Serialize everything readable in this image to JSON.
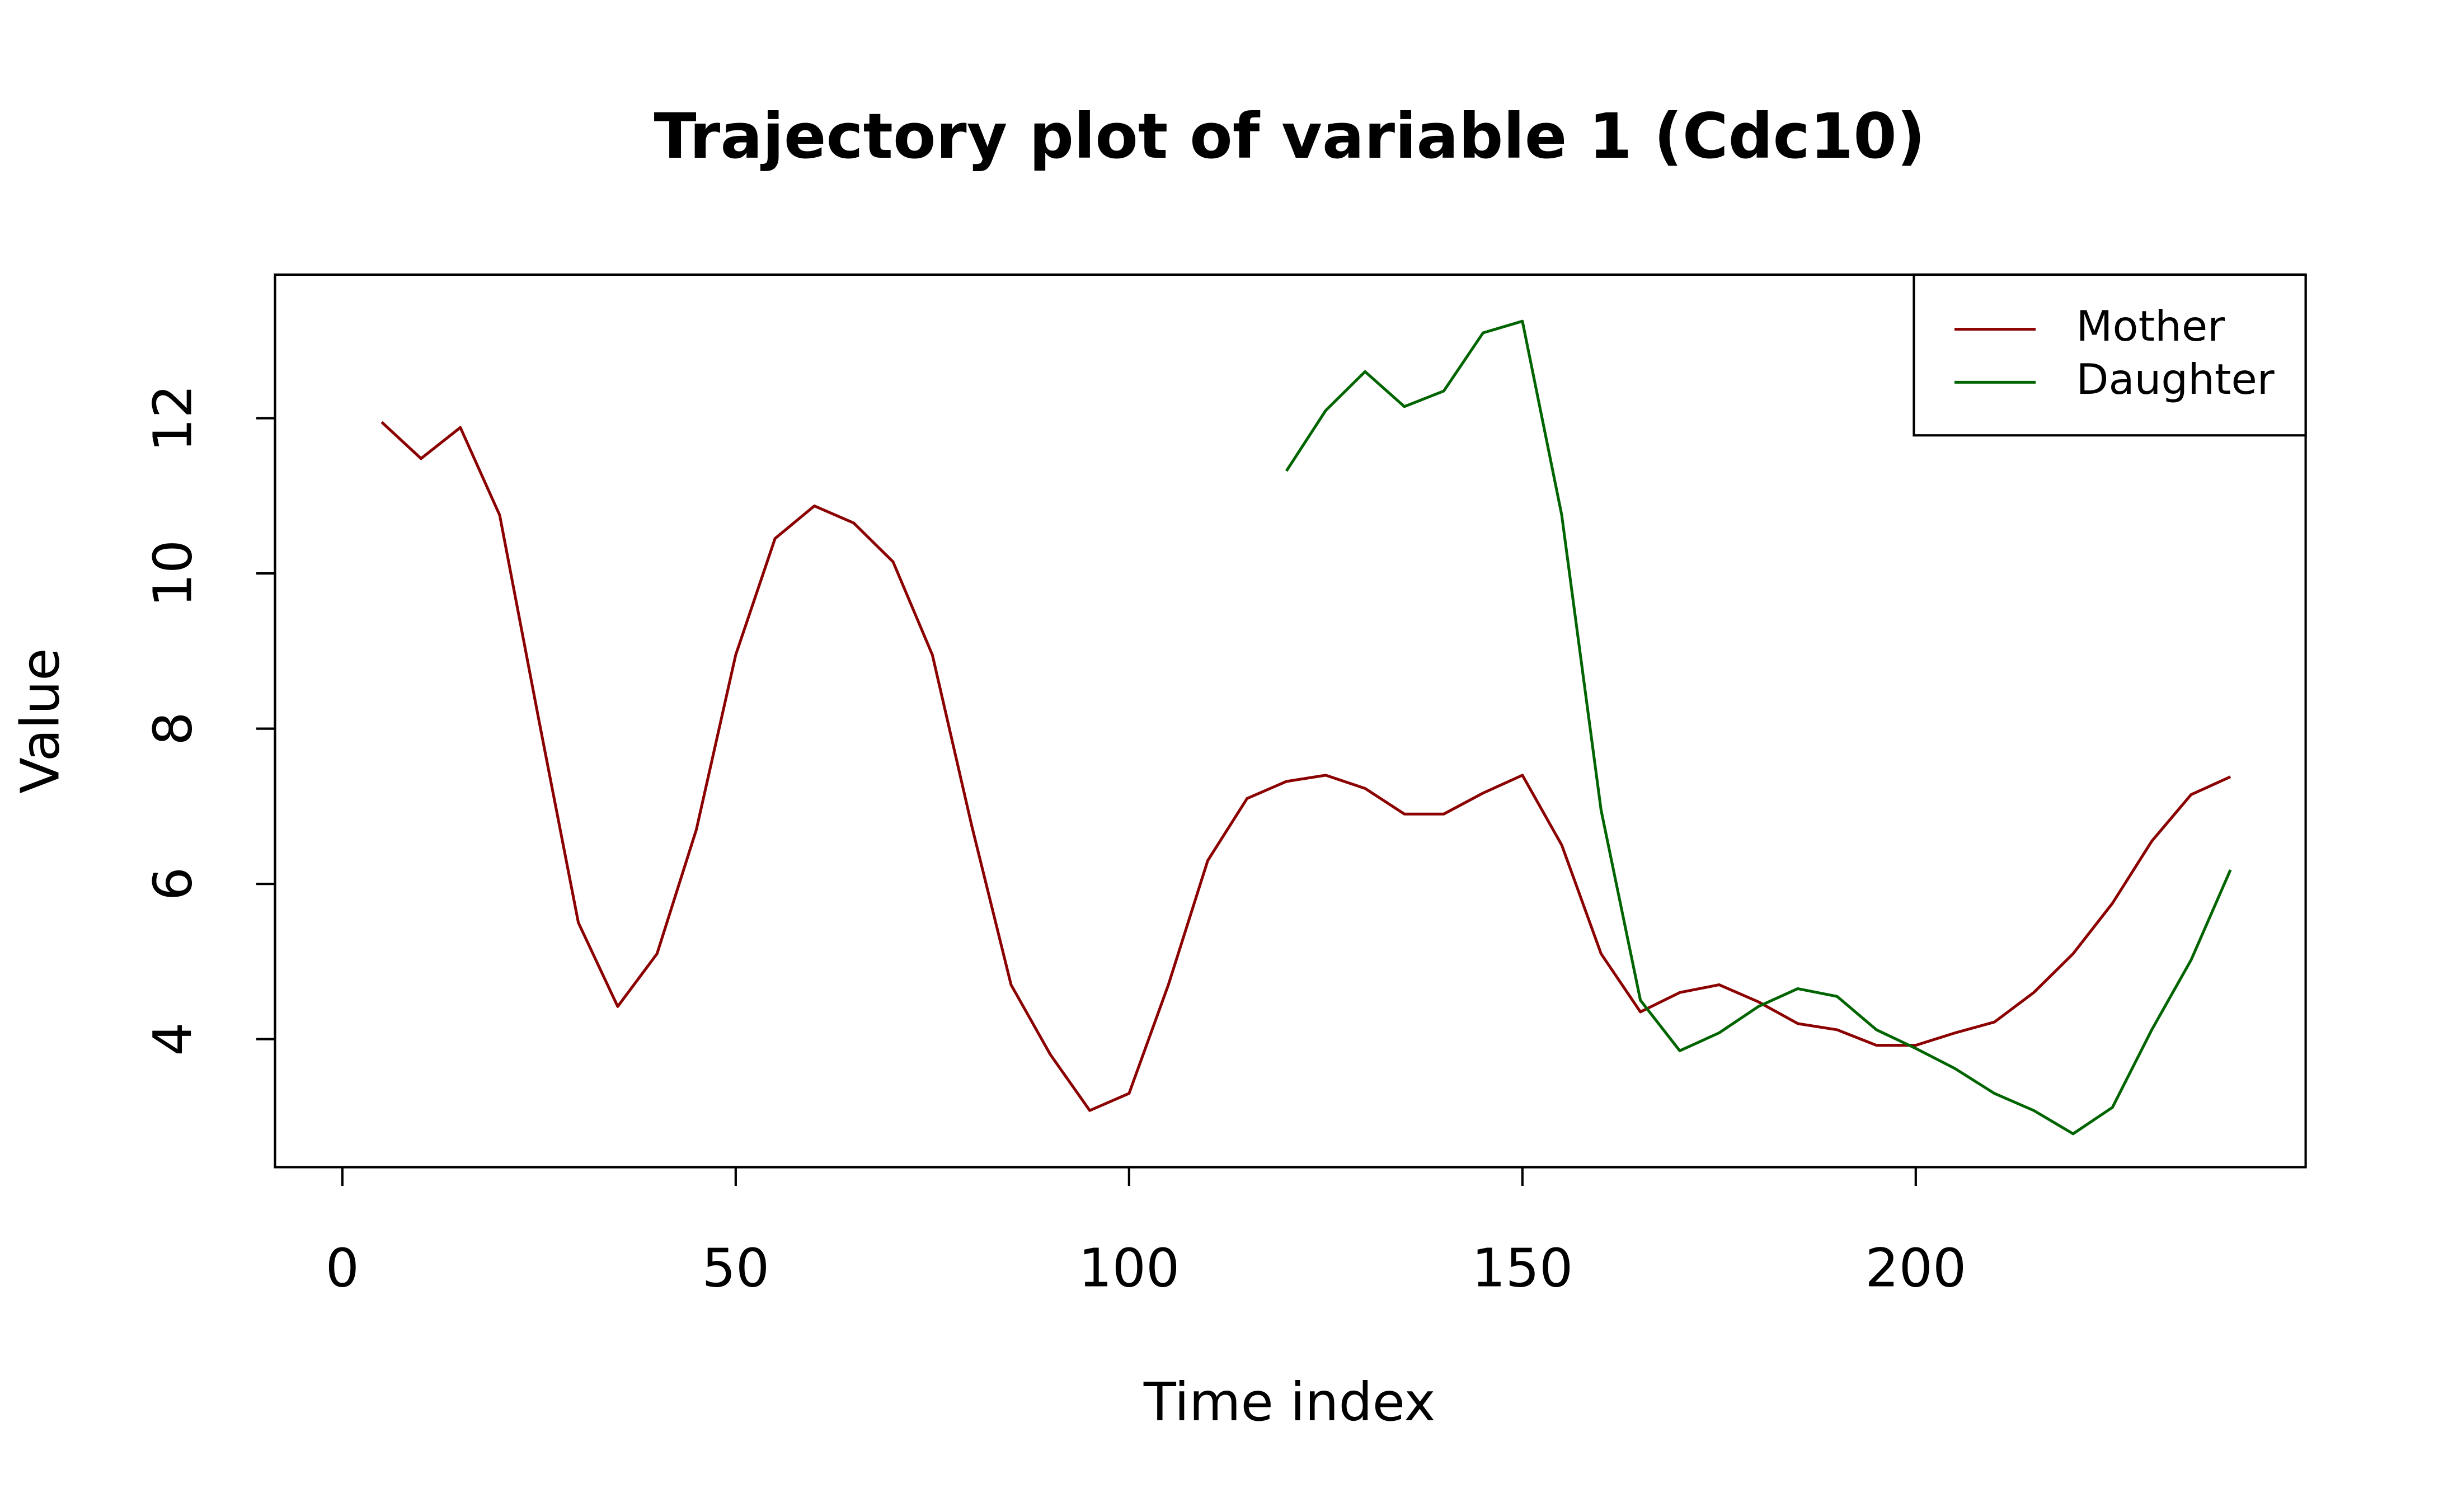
{
  "chart_data": {
    "type": "line",
    "title": "Trajectory plot of variable 1 (Cdc10)",
    "x_label": "Time index",
    "y_label": "Value",
    "x": [
      5,
      10,
      15,
      20,
      25,
      30,
      35,
      40,
      45,
      50,
      55,
      60,
      65,
      70,
      75,
      80,
      85,
      90,
      95,
      100,
      105,
      110,
      115,
      120,
      125,
      130,
      135,
      140,
      145,
      150,
      155,
      160,
      165,
      170,
      175,
      180,
      185,
      190,
      195,
      200,
      205,
      210,
      215,
      220,
      225,
      230,
      235,
      240
    ],
    "series": [
      {
        "name": "Mother",
        "color": "#8b0000",
        "values": [
          11.95,
          11.48,
          11.88,
          10.75,
          8.1,
          5.5,
          4.42,
          5.1,
          6.7,
          8.95,
          10.45,
          10.87,
          10.65,
          10.15,
          8.95,
          6.75,
          4.7,
          3.8,
          3.08,
          3.3,
          4.7,
          6.3,
          7.1,
          7.32,
          7.4,
          7.23,
          6.9,
          6.9,
          7.17,
          7.4,
          6.5,
          5.1,
          4.35,
          4.6,
          4.7,
          4.48,
          4.2,
          4.12,
          3.92,
          3.92,
          4.08,
          4.22,
          4.6,
          5.1,
          5.75,
          6.55,
          7.15,
          7.38
        ]
      },
      {
        "name": "Daughter",
        "color": "#006400",
        "values": [
          null,
          null,
          null,
          null,
          null,
          null,
          null,
          null,
          null,
          null,
          null,
          null,
          null,
          null,
          null,
          null,
          null,
          null,
          null,
          null,
          null,
          null,
          null,
          11.32,
          12.1,
          12.6,
          12.15,
          12.35,
          13.1,
          13.25,
          10.75,
          6.95,
          4.5,
          3.85,
          4.08,
          4.42,
          4.65,
          4.55,
          4.12,
          3.88,
          3.62,
          3.3,
          3.08,
          2.78,
          3.12,
          4.12,
          5.02,
          6.18
        ]
      }
    ],
    "xlim": [
      -8.56,
      249.56
    ],
    "ylim": [
      2.35,
      13.85
    ],
    "xticks": [
      0,
      50,
      100,
      150,
      200
    ],
    "yticks": [
      4,
      6,
      8,
      10,
      12
    ],
    "legend": "top-right"
  }
}
